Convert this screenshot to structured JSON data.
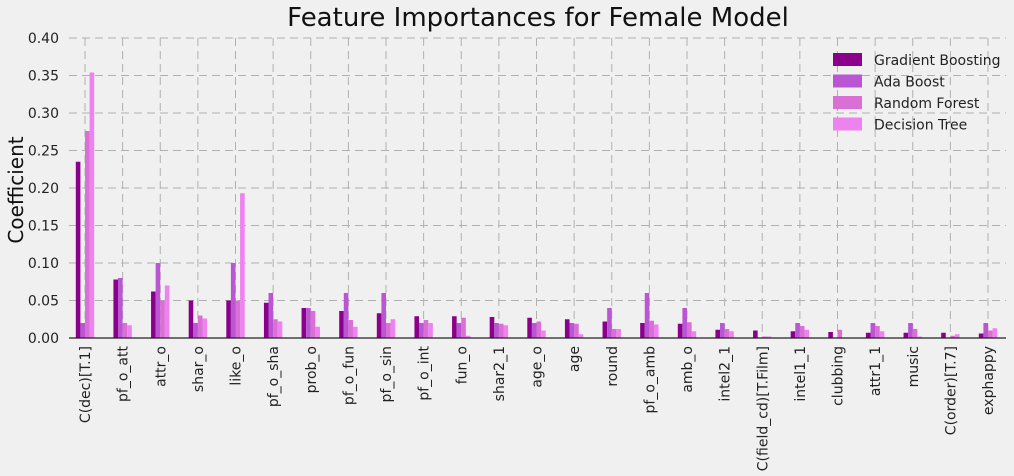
{
  "chart_data": {
    "type": "bar",
    "title": "Feature Importances for Female Model",
    "ylabel": "Coefficient",
    "xlabel": "",
    "ylim": [
      0,
      0.4
    ],
    "yticks": [
      "0.00",
      "0.05",
      "0.10",
      "0.15",
      "0.20",
      "0.25",
      "0.30",
      "0.35",
      "0.40"
    ],
    "grid": true,
    "legend_position": "top-right",
    "categories": [
      "C(dec)[T.1]",
      "pf_o_att",
      "attr_o",
      "shar_o",
      "like_o",
      "pf_o_sha",
      "prob_o",
      "pf_o_fun",
      "pf_o_sin",
      "pf_o_int",
      "fun_o",
      "shar2_1",
      "age_o",
      "age",
      "round",
      "pf_o_amb",
      "amb_o",
      "intel2_1",
      "C(field_cd)[T.Film]",
      "intel1_1",
      "clubbing",
      "attr1_1",
      "music",
      "C(order)[T.7]",
      "exphappy"
    ],
    "series": [
      {
        "name": "Gradient Boosting",
        "color": "#8b008b",
        "values": [
          0.235,
          0.078,
          0.062,
          0.05,
          0.05,
          0.047,
          0.04,
          0.036,
          0.033,
          0.029,
          0.029,
          0.028,
          0.027,
          0.025,
          0.022,
          0.02,
          0.019,
          0.011,
          0.01,
          0.009,
          0.008,
          0.007,
          0.007,
          0.007,
          0.006
        ]
      },
      {
        "name": "Ada Boost",
        "color": "#ba55d3",
        "values": [
          0.02,
          0.08,
          0.1,
          0.02,
          0.1,
          0.06,
          0.04,
          0.06,
          0.06,
          0.02,
          0.02,
          0.02,
          0.02,
          0.02,
          0.04,
          0.06,
          0.04,
          0.02,
          0.0,
          0.02,
          0.0,
          0.02,
          0.02,
          0.0,
          0.02
        ]
      },
      {
        "name": "Random Forest",
        "color": "#da70d6",
        "values": [
          0.276,
          0.02,
          0.05,
          0.03,
          0.05,
          0.025,
          0.036,
          0.024,
          0.02,
          0.024,
          0.027,
          0.019,
          0.022,
          0.019,
          0.012,
          0.023,
          0.021,
          0.012,
          0.002,
          0.016,
          0.011,
          0.016,
          0.012,
          0.003,
          0.01
        ]
      },
      {
        "name": "Decision Tree",
        "color": "#ee82ee",
        "values": [
          0.354,
          0.017,
          0.07,
          0.026,
          0.193,
          0.022,
          0.015,
          0.015,
          0.025,
          0.02,
          0.003,
          0.017,
          0.01,
          0.005,
          0.012,
          0.018,
          0.009,
          0.009,
          0.002,
          0.011,
          0.0,
          0.009,
          0.002,
          0.005,
          0.013
        ]
      }
    ]
  }
}
